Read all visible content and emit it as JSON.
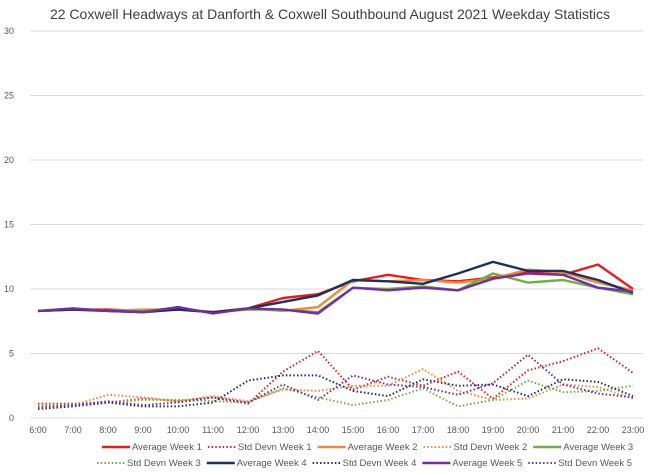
{
  "chart_data": {
    "type": "line",
    "title": "22 Coxwell Headways at Danforth & Coxwell Southbound August 2021 Weekday Statistics",
    "xlabel": "",
    "ylabel": "",
    "ylim": [
      0,
      30
    ],
    "yticks": [
      0,
      5,
      10,
      15,
      20,
      25,
      30
    ],
    "grid": true,
    "legend_position": "bottom",
    "x": [
      "6:00",
      "7:00",
      "8:00",
      "9:00",
      "10:00",
      "11:00",
      "12:00",
      "13:00",
      "14:00",
      "15:00",
      "16:00",
      "17:00",
      "18:00",
      "19:00",
      "20:00",
      "21:00",
      "22:00",
      "23:00"
    ],
    "series": [
      {
        "name": "Average Week 1",
        "color": "#e02020",
        "style": "solid",
        "values": [
          8.3,
          8.4,
          8.4,
          8.3,
          8.4,
          8.2,
          8.5,
          9.3,
          9.6,
          10.6,
          11.1,
          10.7,
          10.6,
          10.9,
          11.3,
          11.1,
          11.9,
          10.0
        ]
      },
      {
        "name": "Std Devn Week 1",
        "color": "#e02020",
        "style": "dotted",
        "values": [
          1.1,
          1.1,
          1.2,
          1.5,
          1.3,
          1.6,
          1.1,
          3.6,
          5.2,
          2.2,
          3.2,
          2.5,
          3.6,
          1.5,
          3.7,
          4.4,
          5.4,
          3.5
        ]
      },
      {
        "name": "Average Week 2",
        "color": "#ed8b3a",
        "style": "solid",
        "values": [
          8.3,
          8.4,
          8.3,
          8.4,
          8.4,
          8.2,
          8.5,
          8.3,
          8.6,
          10.7,
          10.6,
          10.7,
          10.5,
          10.8,
          11.5,
          11.3,
          10.5,
          9.9
        ]
      },
      {
        "name": "Std Devn Week 2",
        "color": "#ed8b3a",
        "style": "dotted",
        "values": [
          1.0,
          1.0,
          1.8,
          1.6,
          1.3,
          1.7,
          1.3,
          2.2,
          2.1,
          2.5,
          2.5,
          3.8,
          2.1,
          1.4,
          1.5,
          2.6,
          2.4,
          1.5
        ]
      },
      {
        "name": "Average Week 3",
        "color": "#70ad47",
        "style": "solid",
        "values": [
          8.3,
          8.5,
          8.3,
          8.3,
          8.5,
          8.2,
          8.4,
          8.4,
          8.2,
          10.1,
          10.0,
          10.2,
          9.9,
          11.2,
          10.5,
          10.7,
          10.1,
          9.6
        ]
      },
      {
        "name": "Std Devn Week 3",
        "color": "#70ad47",
        "style": "dotted",
        "values": [
          0.9,
          1.0,
          1.2,
          1.4,
          1.4,
          1.3,
          1.2,
          2.3,
          1.6,
          1.0,
          1.4,
          2.3,
          0.9,
          1.4,
          2.9,
          2.0,
          2.1,
          2.5
        ]
      },
      {
        "name": "Average Week 4",
        "color": "#1f2f5e",
        "style": "solid",
        "values": [
          8.3,
          8.4,
          8.3,
          8.2,
          8.4,
          8.2,
          8.5,
          9.0,
          9.5,
          10.7,
          10.6,
          10.4,
          11.2,
          12.1,
          11.4,
          11.4,
          10.7,
          9.7
        ]
      },
      {
        "name": "Std Devn Week 4",
        "color": "#1f2f5e",
        "style": "dotted",
        "values": [
          0.7,
          0.9,
          1.2,
          0.9,
          0.9,
          1.2,
          2.9,
          3.3,
          3.3,
          2.1,
          1.7,
          3.0,
          2.5,
          2.6,
          1.7,
          3.0,
          2.8,
          1.7
        ]
      },
      {
        "name": "Average Week 5",
        "color": "#7030a0",
        "style": "solid",
        "values": [
          8.3,
          8.5,
          8.3,
          8.2,
          8.6,
          8.1,
          8.5,
          8.4,
          8.1,
          10.1,
          9.9,
          10.1,
          9.9,
          10.8,
          11.2,
          11.1,
          10.1,
          9.8
        ]
      },
      {
        "name": "Std Devn Week 5",
        "color": "#7030a0",
        "style": "dotted",
        "values": [
          0.8,
          1.0,
          1.3,
          1.0,
          1.2,
          1.6,
          1.2,
          2.6,
          1.4,
          3.3,
          2.6,
          2.4,
          1.8,
          2.7,
          4.9,
          2.6,
          1.9,
          1.6
        ]
      }
    ]
  }
}
